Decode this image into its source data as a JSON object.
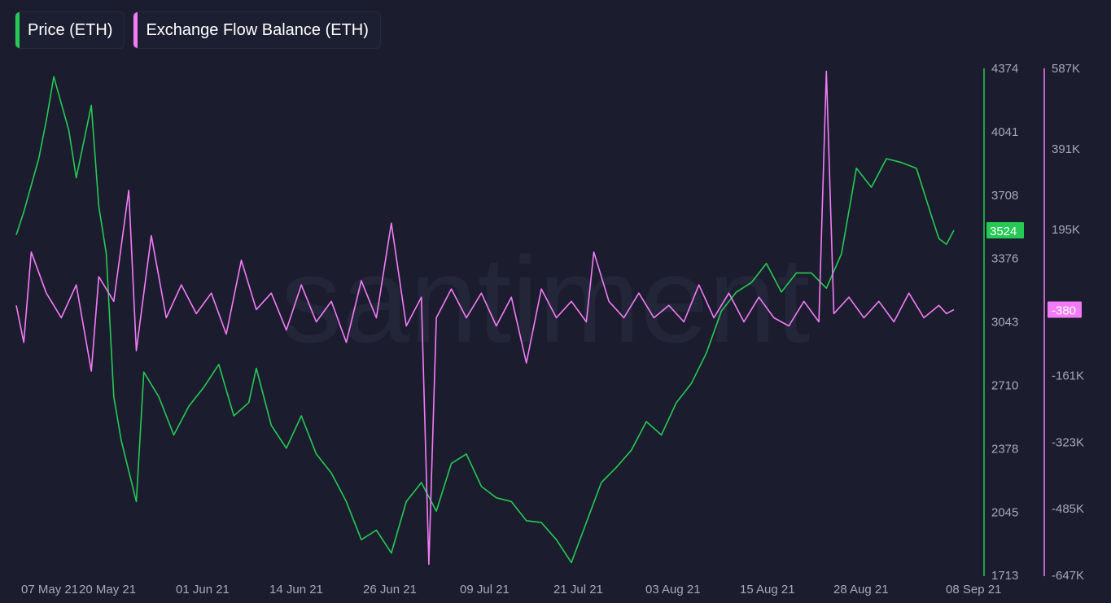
{
  "legend": {
    "items": [
      {
        "label": "Price (ETH)",
        "color": "#26c953"
      },
      {
        "label": "Exchange Flow Balance (ETH)",
        "color": "#f47bf7"
      }
    ]
  },
  "watermark": "santiment",
  "chart_data": {
    "type": "line",
    "x_ticks": [
      "07 May 21",
      "20 May 21",
      "01 Jun 21",
      "14 Jun 21",
      "26 Jun 21",
      "09 Jul 21",
      "21 Jul 21",
      "03 Aug 21",
      "15 Aug 21",
      "28 Aug 21",
      "08 Sep 21"
    ],
    "y_axes": [
      {
        "name": "price",
        "ticks": [
          "4374",
          "4041",
          "3708",
          "3376",
          "3043",
          "2710",
          "2378",
          "2045",
          "1713"
        ],
        "range": [
          1713,
          4374
        ],
        "color": "#26c953",
        "current_value": "3524"
      },
      {
        "name": "flow",
        "ticks": [
          "587K",
          "391K",
          "195K",
          "-161K",
          "-323K",
          "-485K",
          "-647K"
        ],
        "range": [
          -647000,
          587000
        ],
        "color": "#f47bf7",
        "current_value": "-380"
      }
    ],
    "grid": false,
    "series": [
      {
        "name": "Price (ETH)",
        "color": "#26c953",
        "axis": "price",
        "x": [
          "2021-05-07",
          "2021-05-08",
          "2021-05-10",
          "2021-05-11",
          "2021-05-12",
          "2021-05-14",
          "2021-05-15",
          "2021-05-17",
          "2021-05-18",
          "2021-05-19",
          "2021-05-20",
          "2021-05-21",
          "2021-05-23",
          "2021-05-24",
          "2021-05-26",
          "2021-05-28",
          "2021-05-30",
          "2021-06-01",
          "2021-06-03",
          "2021-06-05",
          "2021-06-07",
          "2021-06-08",
          "2021-06-10",
          "2021-06-12",
          "2021-06-14",
          "2021-06-16",
          "2021-06-18",
          "2021-06-20",
          "2021-06-21",
          "2021-06-22",
          "2021-06-24",
          "2021-06-26",
          "2021-06-28",
          "2021-06-30",
          "2021-07-02",
          "2021-07-04",
          "2021-07-06",
          "2021-07-08",
          "2021-07-10",
          "2021-07-12",
          "2021-07-14",
          "2021-07-16",
          "2021-07-18",
          "2021-07-20",
          "2021-07-22",
          "2021-07-24",
          "2021-07-26",
          "2021-07-28",
          "2021-07-30",
          "2021-08-01",
          "2021-08-03",
          "2021-08-05",
          "2021-08-07",
          "2021-08-09",
          "2021-08-11",
          "2021-08-13",
          "2021-08-15",
          "2021-08-17",
          "2021-08-19",
          "2021-08-21",
          "2021-08-23",
          "2021-08-25",
          "2021-08-27",
          "2021-08-29",
          "2021-08-31",
          "2021-09-02",
          "2021-09-04",
          "2021-09-06",
          "2021-09-07",
          "2021-09-08",
          "2021-09-09"
        ],
        "values": [
          3500,
          3620,
          3900,
          4100,
          4330,
          4050,
          3800,
          4180,
          3650,
          3400,
          2650,
          2420,
          2100,
          2780,
          2650,
          2450,
          2600,
          2700,
          2820,
          2550,
          2620,
          2800,
          2500,
          2380,
          2550,
          2350,
          2250,
          2100,
          2000,
          1900,
          1950,
          1830,
          2100,
          2200,
          2050,
          2300,
          2350,
          2180,
          2120,
          2100,
          2000,
          1990,
          1900,
          1780,
          1990,
          2200,
          2280,
          2370,
          2520,
          2450,
          2620,
          2720,
          2880,
          3100,
          3200,
          3250,
          3350,
          3200,
          3300,
          3300,
          3220,
          3400,
          3850,
          3750,
          3900,
          3880,
          3850,
          3600,
          3480,
          3450,
          3524
        ]
      },
      {
        "name": "Exchange Flow Balance (ETH)",
        "color": "#f47bf7",
        "axis": "flow",
        "x": [
          "2021-05-07",
          "2021-05-08",
          "2021-05-09",
          "2021-05-11",
          "2021-05-13",
          "2021-05-15",
          "2021-05-17",
          "2021-05-18",
          "2021-05-20",
          "2021-05-22",
          "2021-05-23",
          "2021-05-25",
          "2021-05-27",
          "2021-05-29",
          "2021-05-31",
          "2021-06-02",
          "2021-06-04",
          "2021-06-06",
          "2021-06-08",
          "2021-06-10",
          "2021-06-12",
          "2021-06-14",
          "2021-06-16",
          "2021-06-18",
          "2021-06-20",
          "2021-06-22",
          "2021-06-24",
          "2021-06-26",
          "2021-06-28",
          "2021-06-30",
          "2021-07-01",
          "2021-07-02",
          "2021-07-04",
          "2021-07-06",
          "2021-07-08",
          "2021-07-10",
          "2021-07-12",
          "2021-07-14",
          "2021-07-16",
          "2021-07-18",
          "2021-07-20",
          "2021-07-22",
          "2021-07-23",
          "2021-07-25",
          "2021-07-27",
          "2021-07-29",
          "2021-07-31",
          "2021-08-02",
          "2021-08-04",
          "2021-08-06",
          "2021-08-08",
          "2021-08-10",
          "2021-08-12",
          "2021-08-14",
          "2021-08-16",
          "2021-08-18",
          "2021-08-20",
          "2021-08-22",
          "2021-08-23",
          "2021-08-24",
          "2021-08-26",
          "2021-08-28",
          "2021-08-30",
          "2021-09-01",
          "2021-09-03",
          "2021-09-05",
          "2021-09-07",
          "2021-09-08",
          "2021-09-09"
        ],
        "values": [
          10000,
          -80000,
          140000,
          40000,
          -20000,
          60000,
          -150000,
          80000,
          20000,
          290000,
          -100000,
          180000,
          -20000,
          60000,
          -10000,
          40000,
          -60000,
          120000,
          0,
          40000,
          -50000,
          60000,
          -30000,
          20000,
          -80000,
          70000,
          -20000,
          210000,
          -40000,
          30000,
          -620000,
          -20000,
          50000,
          -20000,
          40000,
          -40000,
          30000,
          -130000,
          50000,
          -20000,
          20000,
          -30000,
          140000,
          20000,
          -20000,
          40000,
          -20000,
          10000,
          -30000,
          60000,
          -20000,
          40000,
          -30000,
          30000,
          -20000,
          -40000,
          20000,
          -30000,
          580000,
          -10000,
          30000,
          -20000,
          20000,
          -30000,
          40000,
          -20000,
          10000,
          -10000,
          -380
        ]
      }
    ]
  }
}
